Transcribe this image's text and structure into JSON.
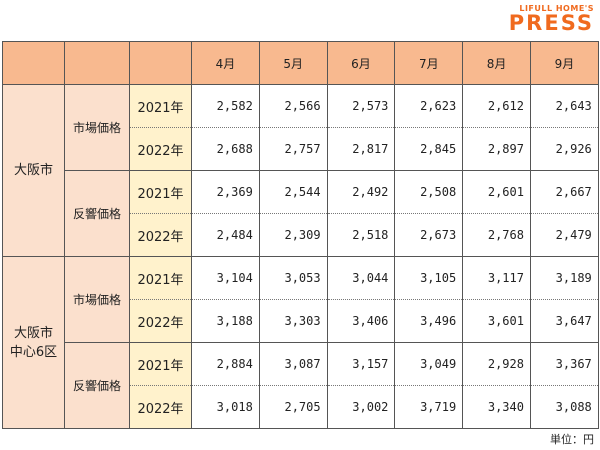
{
  "logo": {
    "top": "LIFULL HOME'S",
    "main": "PRESS"
  },
  "months": [
    "4月",
    "5月",
    "6月",
    "7月",
    "8月",
    "9月"
  ],
  "unit": "単位：円",
  "cities": [
    {
      "name": "大阪市",
      "groups": [
        {
          "type": "市場価格",
          "rows": [
            {
              "year": "2021年",
              "values": [
                "2,582",
                "2,566",
                "2,573",
                "2,623",
                "2,612",
                "2,643"
              ]
            },
            {
              "year": "2022年",
              "values": [
                "2,688",
                "2,757",
                "2,817",
                "2,845",
                "2,897",
                "2,926"
              ]
            }
          ]
        },
        {
          "type": "反響価格",
          "rows": [
            {
              "year": "2021年",
              "values": [
                "2,369",
                "2,544",
                "2,492",
                "2,508",
                "2,601",
                "2,667"
              ]
            },
            {
              "year": "2022年",
              "values": [
                "2,484",
                "2,309",
                "2,518",
                "2,673",
                "2,768",
                "2,479"
              ]
            }
          ]
        }
      ]
    },
    {
      "name": "大阪市\n中心6区",
      "groups": [
        {
          "type": "市場価格",
          "rows": [
            {
              "year": "2021年",
              "values": [
                "3,104",
                "3,053",
                "3,044",
                "3,105",
                "3,117",
                "3,189"
              ]
            },
            {
              "year": "2022年",
              "values": [
                "3,188",
                "3,303",
                "3,406",
                "3,496",
                "3,601",
                "3,647"
              ]
            }
          ]
        },
        {
          "type": "反響価格",
          "rows": [
            {
              "year": "2021年",
              "values": [
                "2,884",
                "3,087",
                "3,157",
                "3,049",
                "2,928",
                "3,367"
              ]
            },
            {
              "year": "2022年",
              "values": [
                "3,018",
                "2,705",
                "3,002",
                "3,719",
                "3,340",
                "3,088"
              ]
            }
          ]
        }
      ]
    }
  ]
}
